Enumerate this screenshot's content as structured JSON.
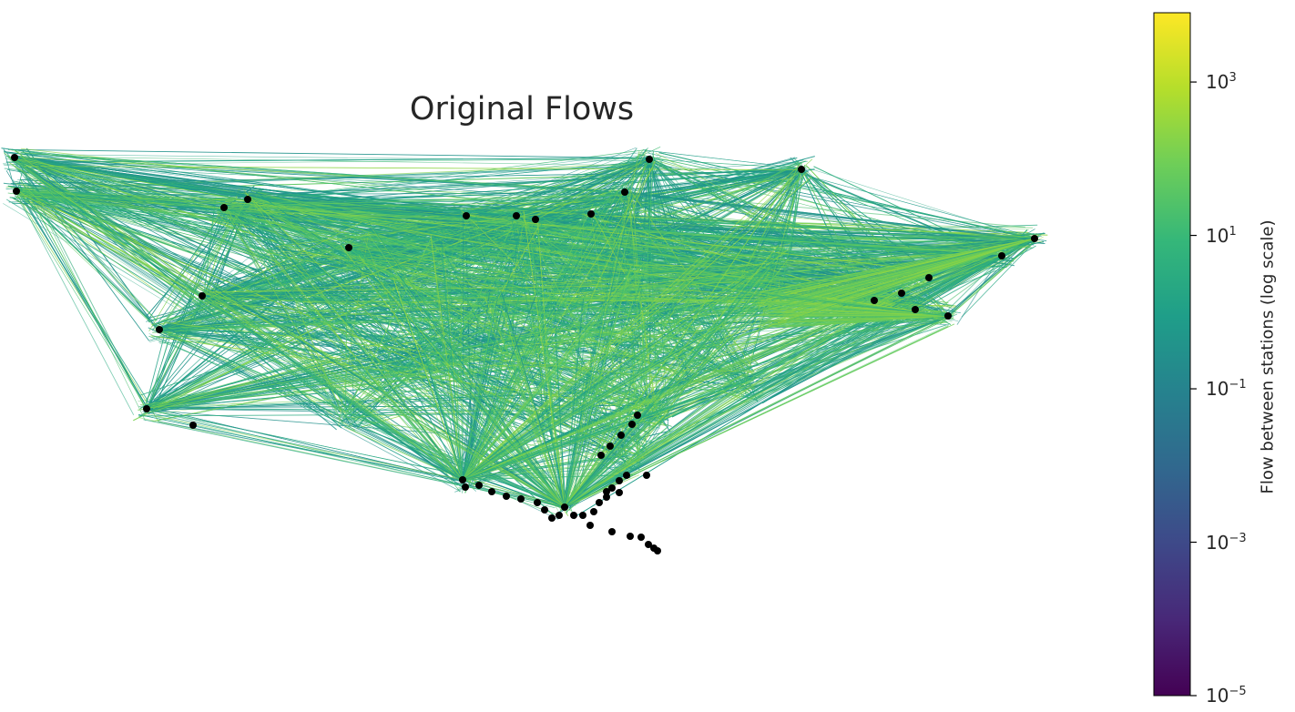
{
  "chart_data": {
    "type": "network-flow-map",
    "title": "Original Flows",
    "colorbar": {
      "label": "Flow between stations (log scale)",
      "scale": "log",
      "colormap": "viridis",
      "range": [
        1e-05,
        8000
      ],
      "ticks": [
        {
          "value": 1e-05,
          "base": "10",
          "exp": "−5"
        },
        {
          "value": 0.001,
          "base": "10",
          "exp": "−3"
        },
        {
          "value": 0.1,
          "base": "10",
          "exp": "−1"
        },
        {
          "value": 10,
          "base": "10",
          "exp": "1"
        },
        {
          "value": 1000,
          "base": "10",
          "exp": "3"
        }
      ],
      "colors": [
        "#440154",
        "#482878",
        "#3e4989",
        "#31688e",
        "#26828e",
        "#1f9e89",
        "#35b779",
        "#6ece58",
        "#b5de2b",
        "#fde725"
      ]
    },
    "edge_color_range_log10": [
      -0.5,
      2.5
    ],
    "node_color": "#000000"
  }
}
